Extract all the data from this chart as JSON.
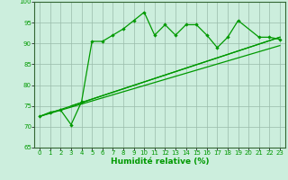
{
  "bg_color": "#cceedd",
  "grid_color": "#99bbaa",
  "line_color": "#009900",
  "xlabel": "Humidité relative (%)",
  "ylim": [
    65,
    100
  ],
  "xlim_min": -0.5,
  "xlim_max": 23.5,
  "yticks": [
    65,
    70,
    75,
    80,
    85,
    90,
    95,
    100
  ],
  "jagged_x": [
    0,
    1,
    2,
    3,
    4,
    5,
    6,
    7,
    8,
    9,
    10,
    11,
    12,
    13,
    14,
    15,
    16,
    17,
    18,
    19,
    21,
    22,
    23
  ],
  "jagged_y": [
    72.5,
    73.5,
    74.0,
    70.5,
    76.0,
    90.5,
    90.5,
    92.0,
    93.5,
    95.5,
    97.5,
    92.0,
    94.5,
    92.0,
    94.5,
    94.5,
    92.0,
    89.0,
    91.5,
    95.5,
    91.5,
    91.5,
    91.0
  ],
  "trend1_x": [
    0,
    23
  ],
  "trend1_y": [
    72.5,
    89.5
  ],
  "trend2_x": [
    0,
    23
  ],
  "trend2_y": [
    72.5,
    91.5
  ],
  "trend3_x": [
    3,
    23
  ],
  "trend3_y": [
    75.0,
    91.5
  ]
}
